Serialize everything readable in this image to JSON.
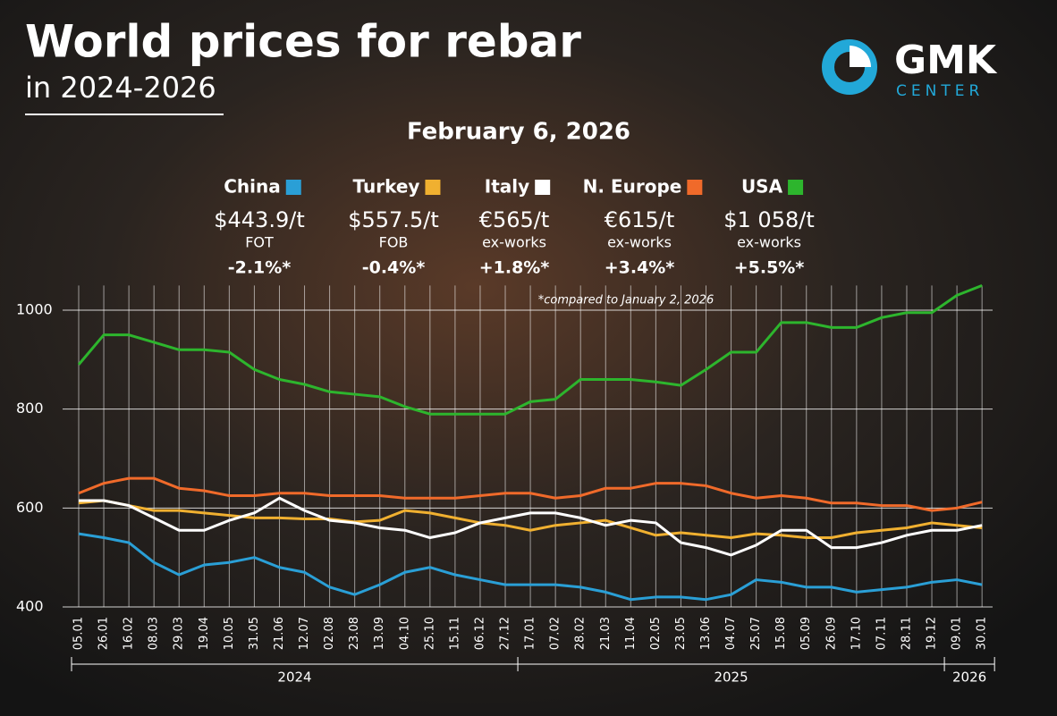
{
  "chart_data": {
    "type": "line",
    "title": "World prices for rebar",
    "subtitle": "in 2024-2026",
    "date": "February 6, 2026",
    "note": "*compared to January 2, 2026",
    "categories": [
      "05.01",
      "26.01",
      "16.02",
      "08.03",
      "29.03",
      "19.04",
      "10.05",
      "31.05",
      "21.06",
      "12.07",
      "02.08",
      "23.08",
      "13.09",
      "04.10",
      "25.10",
      "15.11",
      "06.12",
      "27.12",
      "17.01",
      "07.02",
      "28.02",
      "21.03",
      "11.04",
      "02.05",
      "23.05",
      "13.06",
      "04.07",
      "25.07",
      "15.08",
      "05.09",
      "26.09",
      "17.10",
      "07.11",
      "28.11",
      "19.12",
      "09.01",
      "30.01"
    ],
    "x_groups": [
      "2024",
      "2025",
      "2026"
    ],
    "ylim": [
      400,
      1050
    ],
    "yticks": [
      400,
      600,
      800,
      1000
    ],
    "grid": true,
    "series": [
      {
        "name": "China",
        "color": "#2a9fd6",
        "price": "$443.9/t",
        "basis": "FOT",
        "change": "-2.1%*",
        "values": [
          548,
          540,
          530,
          490,
          465,
          485,
          490,
          500,
          480,
          470,
          440,
          425,
          445,
          470,
          480,
          465,
          455,
          445,
          445,
          445,
          440,
          430,
          415,
          420,
          420,
          415,
          425,
          455,
          450,
          440,
          440,
          430,
          435,
          440,
          450,
          455,
          445
        ]
      },
      {
        "name": "Turkey",
        "color": "#f0b030",
        "price": "$557.5/t",
        "basis": "FOB",
        "change": "-0.4%*",
        "values": [
          610,
          615,
          605,
          595,
          595,
          590,
          585,
          580,
          580,
          578,
          578,
          572,
          575,
          595,
          590,
          580,
          570,
          565,
          555,
          565,
          570,
          575,
          560,
          545,
          550,
          545,
          540,
          548,
          545,
          540,
          540,
          550,
          555,
          560,
          570,
          565,
          560
        ]
      },
      {
        "name": "Italy",
        "color": "#ffffff",
        "price": "€565/t",
        "basis": "ex-works",
        "change": "+1.8%*",
        "values": [
          615,
          615,
          605,
          580,
          555,
          555,
          575,
          590,
          620,
          595,
          575,
          570,
          560,
          555,
          540,
          550,
          570,
          580,
          590,
          590,
          580,
          565,
          575,
          570,
          530,
          520,
          505,
          525,
          555,
          555,
          520,
          520,
          530,
          545,
          555,
          555,
          565
        ]
      },
      {
        "name": "N. Europe",
        "color": "#f06a2a",
        "price": "€615/t",
        "basis": "ex-works",
        "change": "+3.4%*",
        "values": [
          630,
          650,
          660,
          660,
          640,
          635,
          625,
          625,
          630,
          630,
          625,
          625,
          625,
          620,
          620,
          620,
          625,
          630,
          630,
          620,
          625,
          640,
          640,
          650,
          650,
          645,
          630,
          620,
          625,
          620,
          610,
          610,
          605,
          605,
          595,
          600,
          612
        ]
      },
      {
        "name": "USA",
        "color": "#2db52d",
        "price": "$1 058/t",
        "basis": "ex-works",
        "change": "+5.5%*",
        "values": [
          890,
          950,
          950,
          935,
          920,
          920,
          915,
          880,
          860,
          850,
          835,
          830,
          825,
          805,
          790,
          790,
          790,
          790,
          815,
          820,
          860,
          860,
          860,
          855,
          848,
          880,
          915,
          915,
          975,
          975,
          965,
          965,
          985,
          995,
          995,
          1030,
          1050
        ]
      }
    ]
  },
  "logo": {
    "name": "GMK",
    "sub": "CENTER"
  }
}
